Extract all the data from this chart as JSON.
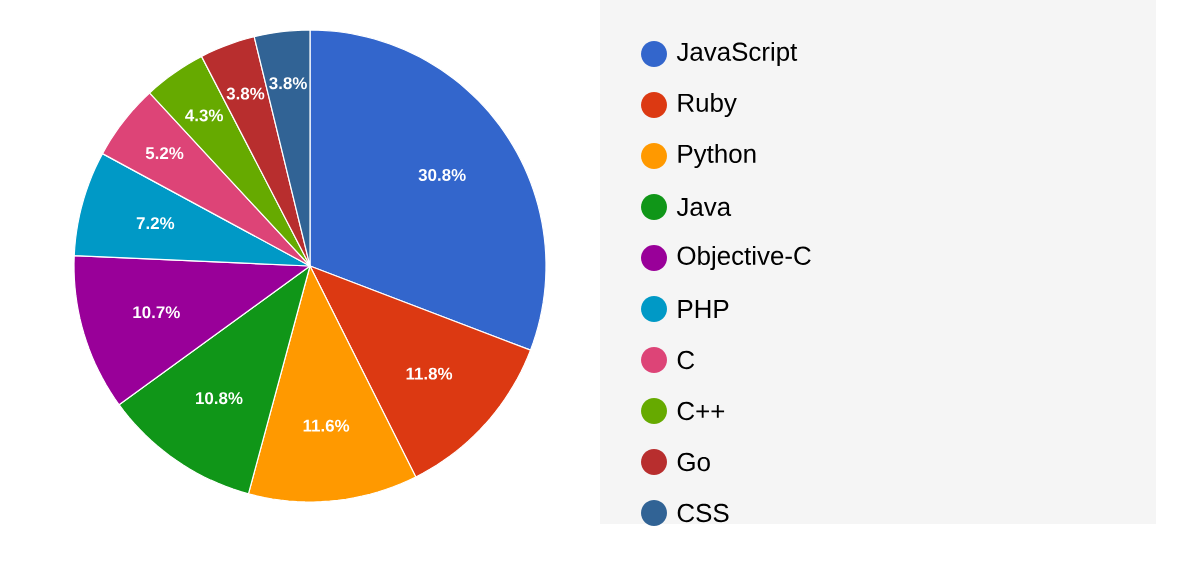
{
  "chart_data": {
    "type": "pie",
    "categories": [
      "JavaScript",
      "Ruby",
      "Python",
      "Java",
      "Objective-C",
      "PHP",
      "C",
      "C++",
      "Go",
      "CSS"
    ],
    "values": [
      30.8,
      11.8,
      11.6,
      10.8,
      10.7,
      7.2,
      5.2,
      4.3,
      3.8,
      3.8
    ],
    "value_labels": [
      "30.8%",
      "11.8%",
      "11.6%",
      "10.8%",
      "10.7%",
      "7.2%",
      "5.2%",
      "4.3%",
      "3.8%",
      "3.8%"
    ],
    "colors": [
      "#3366cc",
      "#dc3912",
      "#ff9900",
      "#109618",
      "#990099",
      "#0099c6",
      "#dd4477",
      "#66aa00",
      "#b82e2e",
      "#316395"
    ],
    "legend": "right"
  }
}
